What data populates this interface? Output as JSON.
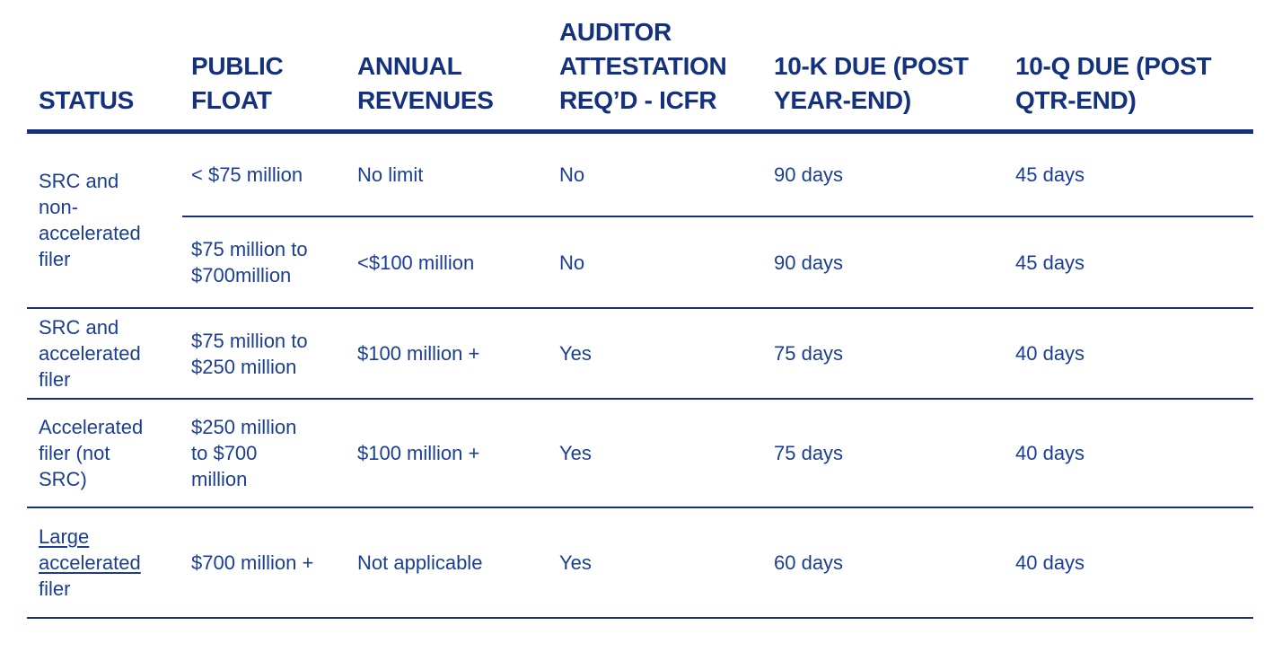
{
  "colors": {
    "header_ink": "#14317E",
    "body_ink": "#1B3E94",
    "rule": "#14317E",
    "background": "#FFFFFF"
  },
  "table": {
    "columns": [
      {
        "id": "status",
        "label": "STATUS"
      },
      {
        "id": "public_float",
        "label": "PUBLIC FLOAT"
      },
      {
        "id": "annual_revenues",
        "label": "ANNUAL REVENUES"
      },
      {
        "id": "auditor_attestation",
        "label": "AUDITOR ATTESTATION REQ’D - ICFR"
      },
      {
        "id": "ten_k_due",
        "label": "10-K DUE (POST YEAR-END)"
      },
      {
        "id": "ten_q_due",
        "label": "10-Q DUE (POST QTR-END)"
      }
    ],
    "groups": [
      {
        "status": "SRC and\nnon-\naccelerated\nfiler",
        "subrows": [
          {
            "public_float": "< $75 million",
            "annual_revenues": "No limit",
            "auditor_attestation": "No",
            "ten_k_due": "90 days",
            "ten_q_due": "45 days"
          },
          {
            "public_float": "$75 million to\n$700million",
            "annual_revenues": "<$100 million",
            "auditor_attestation": "No",
            "ten_k_due": "90 days",
            "ten_q_due": "45 days"
          }
        ]
      },
      {
        "status": "SRC and\naccelerated\nfiler",
        "subrows": [
          {
            "public_float": "$75 million to\n$250 million",
            "annual_revenues": "$100 million +",
            "auditor_attestation": "Yes",
            "ten_k_due": "75 days",
            "ten_q_due": "40 days"
          }
        ]
      },
      {
        "status": "Accelerated\nfiler (not\nSRC)",
        "subrows": [
          {
            "public_float": "$250 million\nto $700\nmillion",
            "annual_revenues": "$100 million +",
            "auditor_attestation": "Yes",
            "ten_k_due": "75 days",
            "ten_q_due": "40 days"
          }
        ]
      },
      {
        "status_link": "Large accelerated",
        "status_rest": "filer",
        "subrows": [
          {
            "public_float": "$700 million +",
            "annual_revenues": "Not applicable",
            "auditor_attestation": "Yes",
            "ten_k_due": "60 days",
            "ten_q_due": "40 days"
          }
        ]
      }
    ]
  }
}
